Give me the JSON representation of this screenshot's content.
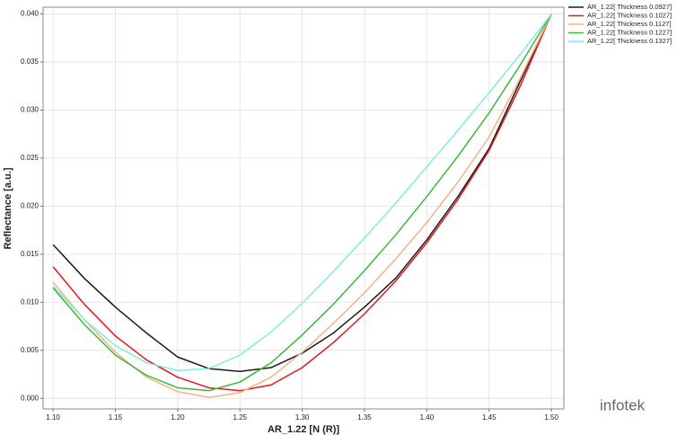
{
  "chart_data": {
    "type": "line",
    "xlabel": "AR_1.22 [N (R)]",
    "ylabel": "Reflectance [a.u.]",
    "watermark": "infotek",
    "legend": "right",
    "grid": true,
    "xlim": [
      1.092,
      1.51
    ],
    "ylim": [
      -0.0011,
      0.0407
    ],
    "xticks": [
      {
        "value": 1.1,
        "label": "1.10"
      },
      {
        "value": 1.15,
        "label": "1.15"
      },
      {
        "value": 1.2,
        "label": "1.20"
      },
      {
        "value": 1.25,
        "label": "1.25"
      },
      {
        "value": 1.3,
        "label": "1.30"
      },
      {
        "value": 1.35,
        "label": "1.35"
      },
      {
        "value": 1.4,
        "label": "1.40"
      },
      {
        "value": 1.45,
        "label": "1.45"
      },
      {
        "value": 1.5,
        "label": "1.50"
      }
    ],
    "yticks": [
      {
        "value": 0,
        "label": "0.000"
      },
      {
        "value": 0.005,
        "label": "0.005"
      },
      {
        "value": 0.01,
        "label": "0.010"
      },
      {
        "value": 0.015,
        "label": "0.015"
      },
      {
        "value": 0.02,
        "label": "0.020"
      },
      {
        "value": 0.025,
        "label": "0.025"
      },
      {
        "value": 0.03,
        "label": "0.030"
      },
      {
        "value": 0.035,
        "label": "0.035"
      },
      {
        "value": 0.04,
        "label": "0.040"
      }
    ],
    "x": [
      1.1,
      1.125,
      1.15,
      1.175,
      1.2,
      1.225,
      1.25,
      1.275,
      1.3,
      1.325,
      1.35,
      1.375,
      1.4,
      1.425,
      1.45,
      1.475,
      1.5
    ],
    "series": [
      {
        "name": "AR_1.22[ Thickness 0.0927]",
        "color": "#1a1a1a",
        "values": [
          0.016,
          0.0125,
          0.0095,
          0.0068,
          0.0043,
          0.0031,
          0.0028,
          0.0032,
          0.0047,
          0.0068,
          0.0095,
          0.0125,
          0.0165,
          0.021,
          0.026,
          0.033,
          0.04
        ]
      },
      {
        "name": "AR_1.22[ Thickness 0.1027]",
        "color": "#e8141b",
        "values": [
          0.0137,
          0.0098,
          0.0065,
          0.004,
          0.0022,
          0.0011,
          0.0008,
          0.0014,
          0.0032,
          0.0058,
          0.0088,
          0.0122,
          0.0162,
          0.0207,
          0.0258,
          0.0325,
          0.04
        ]
      },
      {
        "name": "AR_1.22[ Thickness 0.1127]",
        "color": "#f5b183",
        "values": [
          0.0121,
          0.0082,
          0.0048,
          0.0022,
          0.0007,
          0.0001,
          0.0006,
          0.0022,
          0.0048,
          0.0078,
          0.011,
          0.0145,
          0.0183,
          0.0225,
          0.0272,
          0.0333,
          0.04
        ]
      },
      {
        "name": "AR_1.22[ Thickness 0.1227]",
        "color": "#3cb83c",
        "values": [
          0.0115,
          0.0077,
          0.0045,
          0.0024,
          0.0011,
          0.0008,
          0.0017,
          0.0037,
          0.0066,
          0.0098,
          0.0133,
          0.017,
          0.021,
          0.0252,
          0.0297,
          0.0347,
          0.04
        ]
      },
      {
        "name": "AR_1.22[ Thickness 0.1327]",
        "color": "#7fefd8",
        "values": [
          0.0117,
          0.0082,
          0.0055,
          0.0037,
          0.0029,
          0.0031,
          0.0045,
          0.0069,
          0.0099,
          0.0132,
          0.0167,
          0.0203,
          0.0241,
          0.0279,
          0.0318,
          0.0358,
          0.04
        ]
      }
    ]
  }
}
